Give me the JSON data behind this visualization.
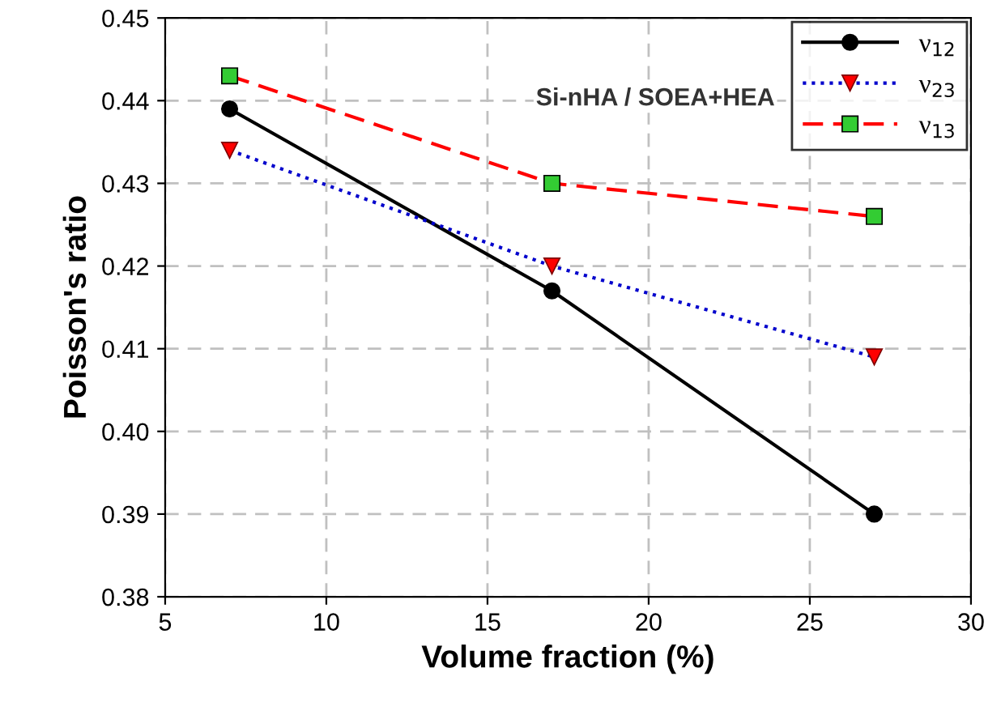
{
  "chart_data": {
    "type": "line",
    "xlabel": "Volume fraction (%)",
    "ylabel": "Poisson's ratio",
    "x": [
      7,
      17,
      27
    ],
    "series": [
      {
        "name": "ν$_{12}$",
        "color": "#000000",
        "values": [
          0.439,
          0.417,
          0.39
        ],
        "marker": "circle",
        "line_style": "solid"
      },
      {
        "name": "ν$_{23}$",
        "color": "#0000cc",
        "values": [
          0.434,
          0.42,
          0.409
        ],
        "marker": "triangle",
        "line_style": "dotted"
      },
      {
        "name": "ν$_{13}$",
        "color": "#ff0000",
        "values": [
          0.443,
          0.43,
          0.426
        ],
        "marker": "square",
        "line_style": "dashed"
      }
    ],
    "annotations": [
      "Si-nHA / SOEA+HEA"
    ],
    "xlim": [
      5,
      30
    ],
    "xticks": [
      5,
      10,
      15,
      20,
      25,
      30
    ],
    "ylim": [
      0.38,
      0.45
    ],
    "yticks": [
      {
        "value": 0.38,
        "label": "0.38"
      },
      {
        "value": 0.39,
        "label": "0.39"
      },
      {
        "value": 0.4,
        "label": "0.40"
      },
      {
        "value": 0.41,
        "label": "0.41"
      },
      {
        "value": 0.42,
        "label": "0.42"
      },
      {
        "value": 0.43,
        "label": "0.43"
      },
      {
        "value": 0.44,
        "label": "0.44"
      },
      {
        "value": 0.45,
        "label": "0.45"
      }
    ],
    "grid": true,
    "legend": "top right"
  }
}
